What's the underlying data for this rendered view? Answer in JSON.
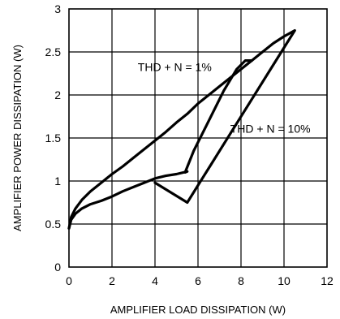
{
  "chart_data": {
    "type": "line",
    "xlabel": "AMPLIFIER  LOAD DISSIPATION (W)",
    "ylabel": "AMPLIFIER POWER DISSIPATION (W)",
    "xlim": [
      0,
      12
    ],
    "ylim": [
      0,
      3
    ],
    "x_ticks": [
      "0",
      "2",
      "4",
      "6",
      "8",
      "10",
      "12"
    ],
    "y_ticks": [
      "0",
      "0.5",
      "1",
      "1.5",
      "2",
      "2.5",
      "3"
    ],
    "grid": true,
    "series": [
      {
        "name": "THD + N = 1%",
        "x": [
          0,
          0.1,
          0.3,
          0.6,
          1.0,
          1.5,
          2.0,
          2.5,
          3.0,
          3.5,
          4.0,
          4.5,
          5.0,
          5.5,
          5.4,
          5.8,
          6.5,
          7.2,
          7.8,
          8.2,
          8.5
        ],
        "y": [
          0.45,
          0.55,
          0.62,
          0.68,
          0.73,
          0.77,
          0.82,
          0.88,
          0.93,
          0.98,
          1.03,
          1.06,
          1.08,
          1.11,
          1.1,
          1.35,
          1.7,
          2.05,
          2.3,
          2.4,
          2.4
        ]
      },
      {
        "name": "THD + N = 10%",
        "x": [
          0,
          0.1,
          0.3,
          0.6,
          1.0,
          1.5,
          2.0,
          2.5,
          3.0,
          3.5,
          4.0,
          4.5,
          5.0,
          5.5,
          6.0,
          6.5,
          7.0,
          7.5,
          8.0,
          8.5,
          9.0,
          9.5,
          10.0,
          10.5,
          9.5,
          8.5,
          7.5,
          6.5,
          5.5,
          4.0
        ],
        "y": [
          0.45,
          0.58,
          0.68,
          0.78,
          0.88,
          0.98,
          1.08,
          1.17,
          1.27,
          1.37,
          1.47,
          1.57,
          1.68,
          1.78,
          1.9,
          2.0,
          2.1,
          2.2,
          2.3,
          2.4,
          2.5,
          2.6,
          2.68,
          2.75,
          2.35,
          1.95,
          1.55,
          1.15,
          0.75,
          0.98
        ]
      }
    ],
    "annotations": [
      "THD + N = 1%",
      "THD + N = 10%"
    ]
  }
}
